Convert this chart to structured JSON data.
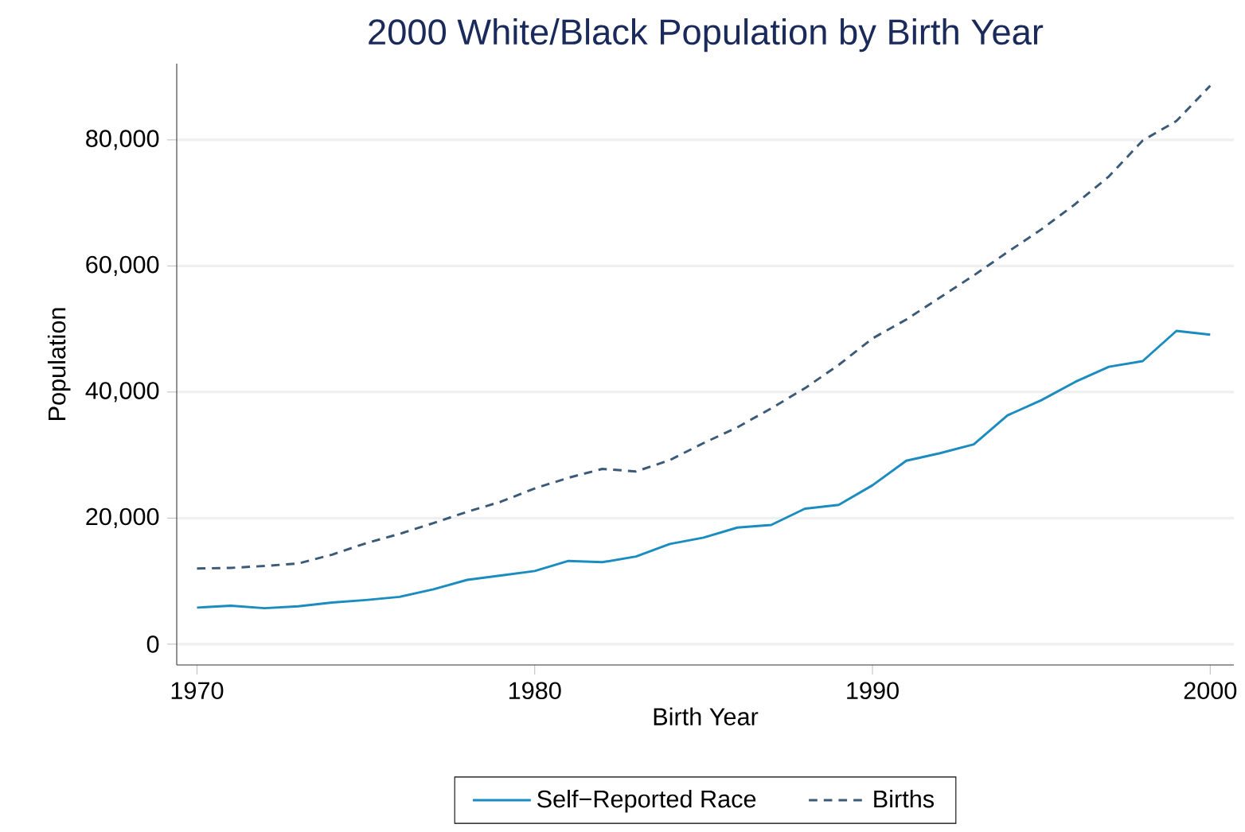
{
  "chart_data": {
    "type": "line",
    "title": "2000 White/Black Population by Birth Year",
    "xlabel": "Birth Year",
    "ylabel": "Population",
    "x": [
      1970,
      1971,
      1972,
      1973,
      1974,
      1975,
      1976,
      1977,
      1978,
      1979,
      1980,
      1981,
      1982,
      1983,
      1984,
      1985,
      1986,
      1987,
      1988,
      1989,
      1990,
      1991,
      1992,
      1993,
      1994,
      1995,
      1996,
      1997,
      1998,
      1999,
      2000
    ],
    "series": [
      {
        "name": "Self−Reported Race",
        "color": "#1a8cc0",
        "line_style": "solid",
        "values": [
          5800,
          6100,
          5700,
          6000,
          6600,
          7000,
          7500,
          8700,
          10200,
          10900,
          11600,
          13200,
          13000,
          13900,
          15900,
          16900,
          18500,
          18900,
          21500,
          22100,
          25200,
          29100,
          30300,
          31700,
          36300,
          38700,
          41600,
          44000,
          44900,
          49700,
          49100
        ]
      },
      {
        "name": "Births",
        "color": "#3b5a78",
        "line_style": "dashed",
        "values": [
          12000,
          12100,
          12400,
          12800,
          14200,
          16000,
          17500,
          19200,
          21000,
          22600,
          24700,
          26400,
          27800,
          27400,
          29200,
          31900,
          34400,
          37400,
          40600,
          44300,
          48500,
          51500,
          55000,
          58500,
          62200,
          65800,
          69800,
          74200,
          79900,
          83000,
          88600
        ]
      }
    ],
    "xlim": [
      1969.4,
      2000.7
    ],
    "ylim": [
      -3300,
      92100
    ],
    "xticks": [
      1970,
      1980,
      1990,
      2000
    ],
    "yticks": [
      {
        "value": 0,
        "label": "0"
      },
      {
        "value": 20000,
        "label": "20,000"
      },
      {
        "value": 40000,
        "label": "40,000"
      },
      {
        "value": 60000,
        "label": "60,000"
      },
      {
        "value": 80000,
        "label": "80,000"
      }
    ],
    "grid": "y",
    "legend": "bottom"
  }
}
